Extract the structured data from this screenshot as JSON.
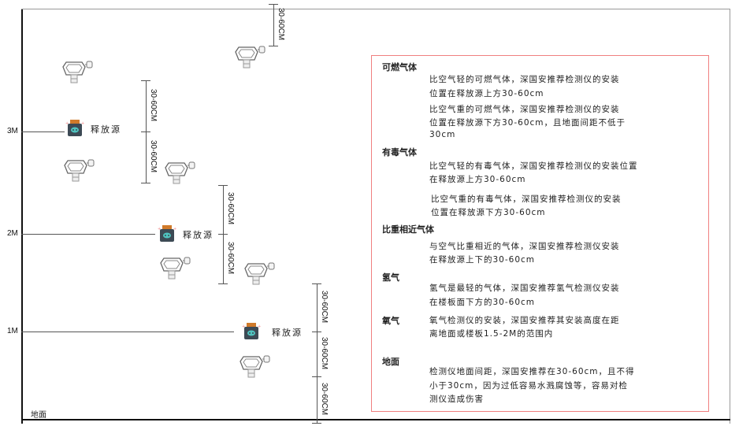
{
  "levels": {
    "l3": "3M",
    "l2": "2M",
    "l1": "1M",
    "ground": "地面"
  },
  "source_label": "释放源",
  "dimension_label": "30-60CM",
  "colors": {
    "border": "#f08080",
    "source_body": "#3d4a55",
    "source_cap": "#d07a2a",
    "source_face": "#4fc4c0"
  },
  "notes": {
    "combustible": {
      "title": "可燃气体",
      "lighter": [
        "比空气轻的可燃气体，深国安推荐检测仪的安装",
        "位置在释放源上方30-60cm"
      ],
      "heavier": [
        "比空气重的可燃气体，深国安推荐检测仪的安装",
        "位置在释放源下方30-60cm，且地面间距不低于",
        "30cm"
      ]
    },
    "toxic": {
      "title": "有毒气体",
      "lighter": [
        "比空气轻的有毒气体，深国安推荐检测仪的安装位置",
        "在释放源上方30-60cm"
      ],
      "heavier": [
        "比空气重的有毒气体，深国安推荐检测仪的安装",
        "位置在释放源下方30-60cm"
      ]
    },
    "similar": {
      "title": "比重相近气体",
      "text": [
        "与空气比重相近的气体，深国安推荐检测仪安装",
        "在释放源上下的30-60cm"
      ]
    },
    "hydrogen": {
      "title": "氢气",
      "text": [
        "氢气是最轻的气体，深国安推荐氢气检测仪安装",
        "在楼板面下方的30-60cm"
      ]
    },
    "oxygen": {
      "title": "氧气",
      "text": [
        "氧气检测仪的安装，深国安推荐其安装高度在距",
        "离地面或楼板1.5-2M的范围内"
      ]
    },
    "ground": {
      "title": "地面",
      "text": [
        "检测仪地面间距，深国安推荐在30-60cm，且不得",
        "小于30cm，因为过低容易水溅腐蚀等，容易对检",
        "测仪造成伤害"
      ]
    }
  }
}
